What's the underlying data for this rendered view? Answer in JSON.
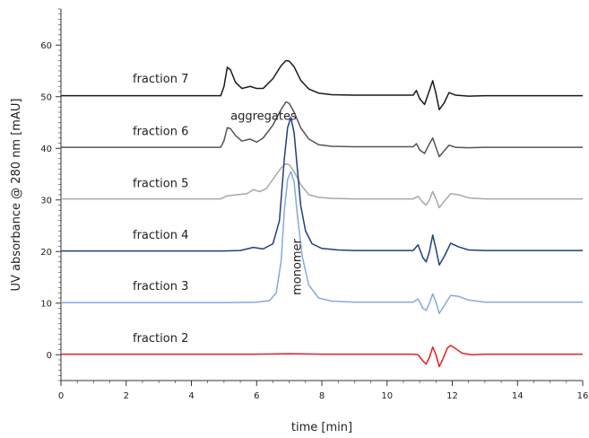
{
  "chart_data": {
    "type": "line",
    "title": "",
    "xlabel": "time [min]",
    "ylabel": "UV absorbance @ 280 nm [mAU]",
    "xlim": [
      0,
      16
    ],
    "ylim": [
      -5,
      67
    ],
    "x_ticks": [
      0,
      2,
      4,
      6,
      8,
      10,
      12,
      14,
      16
    ],
    "y_ticks": [
      0,
      10,
      20,
      30,
      40,
      50,
      60
    ],
    "grid": false,
    "legend": "none",
    "series": [
      {
        "name": "fraction 7",
        "color": "#1a1a1a",
        "points": [
          [
            0,
            50.2
          ],
          [
            4.9,
            50.2
          ],
          [
            5.0,
            52
          ],
          [
            5.1,
            55.7
          ],
          [
            5.2,
            55.2
          ],
          [
            5.35,
            52.8
          ],
          [
            5.55,
            51.6
          ],
          [
            5.8,
            52.0
          ],
          [
            6.0,
            51.6
          ],
          [
            6.2,
            51.6
          ],
          [
            6.5,
            53.5
          ],
          [
            6.75,
            56.0
          ],
          [
            6.9,
            57.0
          ],
          [
            7.0,
            56.9
          ],
          [
            7.15,
            55.8
          ],
          [
            7.35,
            53.2
          ],
          [
            7.6,
            51.5
          ],
          [
            7.9,
            50.7
          ],
          [
            8.3,
            50.4
          ],
          [
            9.0,
            50.3
          ],
          [
            10.8,
            50.3
          ],
          [
            10.9,
            51.2
          ],
          [
            11.0,
            49.6
          ],
          [
            11.15,
            48.5
          ],
          [
            11.25,
            50.3
          ],
          [
            11.4,
            53.1
          ],
          [
            11.5,
            50.6
          ],
          [
            11.6,
            47.5
          ],
          [
            11.75,
            48.8
          ],
          [
            11.9,
            50.8
          ],
          [
            12.1,
            50.3
          ],
          [
            12.5,
            50.1
          ],
          [
            13.0,
            50.2
          ],
          [
            16,
            50.2
          ]
        ]
      },
      {
        "name": "fraction 6",
        "color": "#555555",
        "points": [
          [
            0,
            40.2
          ],
          [
            4.9,
            40.2
          ],
          [
            5.0,
            41.5
          ],
          [
            5.1,
            44.0
          ],
          [
            5.2,
            43.8
          ],
          [
            5.35,
            42.5
          ],
          [
            5.55,
            41.4
          ],
          [
            5.8,
            41.8
          ],
          [
            6.0,
            41.2
          ],
          [
            6.2,
            42.0
          ],
          [
            6.5,
            44.5
          ],
          [
            6.75,
            47.5
          ],
          [
            6.9,
            49.0
          ],
          [
            7.0,
            48.7
          ],
          [
            7.15,
            47.0
          ],
          [
            7.35,
            44.0
          ],
          [
            7.6,
            41.8
          ],
          [
            7.9,
            40.7
          ],
          [
            8.3,
            40.4
          ],
          [
            9.0,
            40.3
          ],
          [
            10.8,
            40.3
          ],
          [
            10.9,
            40.9
          ],
          [
            11.0,
            39.7
          ],
          [
            11.15,
            39.0
          ],
          [
            11.25,
            40.3
          ],
          [
            11.4,
            42.0
          ],
          [
            11.5,
            40.2
          ],
          [
            11.6,
            38.4
          ],
          [
            11.75,
            39.5
          ],
          [
            11.9,
            40.6
          ],
          [
            12.1,
            40.2
          ],
          [
            12.5,
            40.1
          ],
          [
            13.0,
            40.2
          ],
          [
            16,
            40.2
          ]
        ]
      },
      {
        "name": "fraction 5",
        "color": "#a8a8a8",
        "points": [
          [
            0,
            30.2
          ],
          [
            4.9,
            30.2
          ],
          [
            5.1,
            30.8
          ],
          [
            5.4,
            31.0
          ],
          [
            5.7,
            31.2
          ],
          [
            5.9,
            32.0
          ],
          [
            6.1,
            31.6
          ],
          [
            6.3,
            32.2
          ],
          [
            6.5,
            34.0
          ],
          [
            6.75,
            36.2
          ],
          [
            6.9,
            37.0
          ],
          [
            7.0,
            36.8
          ],
          [
            7.15,
            35.5
          ],
          [
            7.35,
            33.0
          ],
          [
            7.6,
            31.0
          ],
          [
            7.9,
            30.5
          ],
          [
            8.3,
            30.3
          ],
          [
            9.0,
            30.2
          ],
          [
            10.8,
            30.2
          ],
          [
            10.95,
            30.7
          ],
          [
            11.1,
            29.5
          ],
          [
            11.2,
            29.0
          ],
          [
            11.3,
            30.0
          ],
          [
            11.4,
            31.6
          ],
          [
            11.5,
            30.2
          ],
          [
            11.6,
            28.5
          ],
          [
            11.75,
            29.7
          ],
          [
            11.95,
            31.2
          ],
          [
            12.2,
            31.0
          ],
          [
            12.5,
            30.4
          ],
          [
            13.0,
            30.2
          ],
          [
            16,
            30.2
          ]
        ]
      },
      {
        "name": "fraction 4",
        "color": "#1f3f80",
        "points": [
          [
            0,
            20.1
          ],
          [
            5.0,
            20.1
          ],
          [
            5.5,
            20.2
          ],
          [
            5.9,
            20.8
          ],
          [
            6.2,
            20.5
          ],
          [
            6.5,
            21.5
          ],
          [
            6.7,
            26.0
          ],
          [
            6.85,
            38.0
          ],
          [
            6.95,
            44.0
          ],
          [
            7.05,
            46.0
          ],
          [
            7.15,
            43.0
          ],
          [
            7.25,
            36.0
          ],
          [
            7.35,
            29.0
          ],
          [
            7.5,
            24.0
          ],
          [
            7.7,
            21.5
          ],
          [
            8.0,
            20.6
          ],
          [
            8.5,
            20.3
          ],
          [
            9.0,
            20.2
          ],
          [
            10.8,
            20.2
          ],
          [
            10.95,
            21.3
          ],
          [
            11.1,
            18.8
          ],
          [
            11.2,
            18.0
          ],
          [
            11.3,
            20.0
          ],
          [
            11.4,
            23.2
          ],
          [
            11.5,
            20.5
          ],
          [
            11.6,
            17.4
          ],
          [
            11.75,
            19.0
          ],
          [
            11.95,
            21.6
          ],
          [
            12.2,
            20.9
          ],
          [
            12.5,
            20.3
          ],
          [
            13.0,
            20.2
          ],
          [
            16,
            20.2
          ]
        ]
      },
      {
        "name": "fraction 3",
        "color": "#86a8e0",
        "points": [
          [
            0,
            10.1
          ],
          [
            5.0,
            10.1
          ],
          [
            6.0,
            10.2
          ],
          [
            6.4,
            10.5
          ],
          [
            6.6,
            12.0
          ],
          [
            6.75,
            18.0
          ],
          [
            6.85,
            28.0
          ],
          [
            6.95,
            34.0
          ],
          [
            7.05,
            35.5
          ],
          [
            7.15,
            33.5
          ],
          [
            7.25,
            27.0
          ],
          [
            7.4,
            19.0
          ],
          [
            7.6,
            13.5
          ],
          [
            7.9,
            11.0
          ],
          [
            8.3,
            10.4
          ],
          [
            9.0,
            10.2
          ],
          [
            10.8,
            10.2
          ],
          [
            10.95,
            10.8
          ],
          [
            11.1,
            9.0
          ],
          [
            11.2,
            8.6
          ],
          [
            11.3,
            10.0
          ],
          [
            11.4,
            11.8
          ],
          [
            11.5,
            10.2
          ],
          [
            11.6,
            8.0
          ],
          [
            11.75,
            9.5
          ],
          [
            11.95,
            11.5
          ],
          [
            12.2,
            11.3
          ],
          [
            12.5,
            10.6
          ],
          [
            13.0,
            10.2
          ],
          [
            16,
            10.2
          ]
        ]
      },
      {
        "name": "fraction 2",
        "color": "#e32020",
        "points": [
          [
            0,
            0.1
          ],
          [
            4.0,
            0.1
          ],
          [
            6.0,
            0.1
          ],
          [
            7.0,
            0.2
          ],
          [
            8.0,
            0.1
          ],
          [
            10.8,
            0.1
          ],
          [
            10.95,
            0.0
          ],
          [
            11.1,
            -1.2
          ],
          [
            11.2,
            -1.8
          ],
          [
            11.3,
            -0.5
          ],
          [
            11.4,
            1.5
          ],
          [
            11.5,
            0.0
          ],
          [
            11.6,
            -2.3
          ],
          [
            11.7,
            -1.0
          ],
          [
            11.85,
            1.3
          ],
          [
            11.95,
            1.8
          ],
          [
            12.1,
            1.2
          ],
          [
            12.3,
            0.3
          ],
          [
            12.6,
            0.0
          ],
          [
            13.0,
            0.1
          ],
          [
            16,
            0.1
          ]
        ]
      }
    ],
    "trace_labels": [
      {
        "text": "fraction 7",
        "x": 2.2,
        "y": 52.7
      },
      {
        "text": "fraction 6",
        "x": 2.2,
        "y": 42.6
      },
      {
        "text": "fraction 5",
        "x": 2.2,
        "y": 32.5
      },
      {
        "text": "fraction 4",
        "x": 2.2,
        "y": 22.5
      },
      {
        "text": "fraction 3",
        "x": 2.2,
        "y": 12.6
      },
      {
        "text": "fraction 2",
        "x": 2.2,
        "y": 2.5
      }
    ],
    "annotations": [
      {
        "text": "aggregates",
        "x": 5.2,
        "y": 45.5,
        "rotate": 0
      },
      {
        "text": "monomer",
        "x": 7.35,
        "y": 17.0,
        "rotate": -90
      }
    ]
  }
}
